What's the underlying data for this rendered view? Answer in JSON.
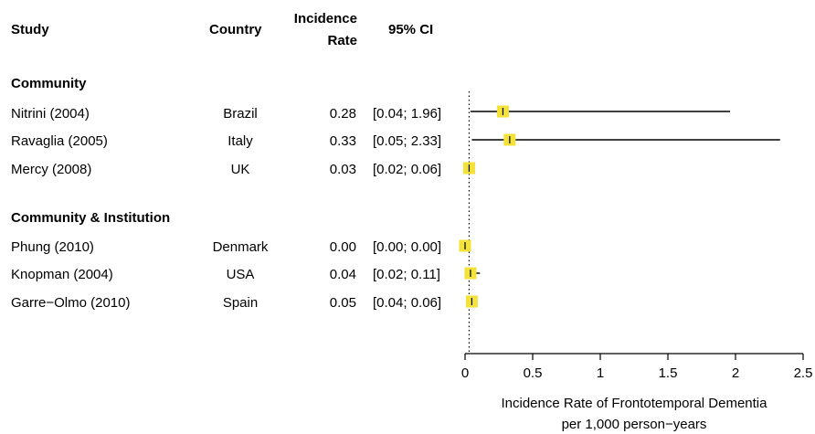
{
  "headers": {
    "study": "Study",
    "country": "Country",
    "rate_line1": "Incidence",
    "rate_line2": "Rate",
    "ci": "95% CI"
  },
  "groups": [
    {
      "label": "Community",
      "studies": [
        {
          "study": "Nitrini (2004)",
          "country": "Brazil",
          "rate": "0.28",
          "ci": "[0.04; 1.96]"
        },
        {
          "study": "Ravaglia (2005)",
          "country": "Italy",
          "rate": "0.33",
          "ci": "[0.05; 2.33]"
        },
        {
          "study": "Mercy (2008)",
          "country": "UK",
          "rate": "0.03",
          "ci": "[0.02; 0.06]"
        }
      ]
    },
    {
      "label": "Community & Institution",
      "studies": [
        {
          "study": "Phung (2010)",
          "country": "Denmark",
          "rate": "0.00",
          "ci": "[0.00; 0.00]"
        },
        {
          "study": "Knopman (2004)",
          "country": "USA",
          "rate": "0.04",
          "ci": "[0.02; 0.11]"
        },
        {
          "study": "Garre−Olmo (2010)",
          "country": "Spain",
          "rate": "0.05",
          "ci": "[0.04; 0.06]"
        }
      ]
    }
  ],
  "colors": {
    "marker": "#f2e23a",
    "line": "#000000"
  },
  "chart_data": {
    "type": "forest",
    "xlabel_line1": "Incidence Rate of Frontotemporal Dementia",
    "xlabel_line2": "per 1,000 person−years",
    "xlim": [
      0,
      2.5
    ],
    "xticks": [
      "0",
      "0.5",
      "1",
      "1.5",
      "2",
      "2.5"
    ],
    "reference_line": 0.03,
    "points": [
      {
        "study": "Nitrini (2004)",
        "estimate": 0.28,
        "lower": 0.04,
        "upper": 1.96
      },
      {
        "study": "Ravaglia (2005)",
        "estimate": 0.33,
        "lower": 0.05,
        "upper": 2.33
      },
      {
        "study": "Mercy (2008)",
        "estimate": 0.03,
        "lower": 0.02,
        "upper": 0.06
      },
      {
        "study": "Phung (2010)",
        "estimate": 0.0,
        "lower": 0.0,
        "upper": 0.0
      },
      {
        "study": "Knopman (2004)",
        "estimate": 0.04,
        "lower": 0.02,
        "upper": 0.11
      },
      {
        "study": "Garre−Olmo (2010)",
        "estimate": 0.05,
        "lower": 0.04,
        "upper": 0.06
      }
    ]
  }
}
